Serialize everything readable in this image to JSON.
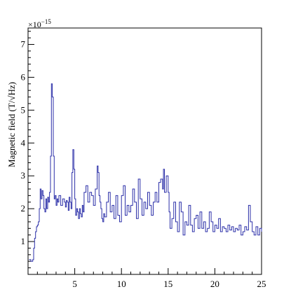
{
  "chart_data": {
    "type": "line",
    "title": "",
    "xlabel": "",
    "ylabel": "Magnetic field (T/√Hz)",
    "y_multiplier_base": "×10",
    "y_multiplier_exponent": "−15",
    "xlim": [
      0,
      25
    ],
    "ylim": [
      0,
      7.5
    ],
    "x_ticks": [
      5,
      10,
      15,
      20,
      25
    ],
    "x_tick_labels": [
      "5",
      "10",
      "15",
      "20",
      "25"
    ],
    "y_ticks": [
      1,
      2,
      3,
      4,
      5,
      6,
      7
    ],
    "y_tick_labels": [
      "1",
      "2",
      "3",
      "4",
      "5",
      "6",
      "7"
    ],
    "grid": false,
    "legend": "none",
    "series_color": "#2b2fa8",
    "series": [
      {
        "x": [
          0.1,
          0.3,
          0.5,
          0.6,
          0.7,
          0.8,
          0.9,
          1.0,
          1.1,
          1.2,
          1.3,
          1.4,
          1.5,
          1.6,
          1.7,
          1.8,
          1.9,
          2.0,
          2.1,
          2.2,
          2.3,
          2.4,
          2.5,
          2.6,
          2.7,
          2.8,
          2.9,
          3.0,
          3.1,
          3.2,
          3.3,
          3.5,
          3.7,
          3.9,
          4.0,
          4.1,
          4.2,
          4.3,
          4.4,
          4.5,
          4.6,
          4.7,
          4.8,
          4.9,
          5.0,
          5.1,
          5.2,
          5.3,
          5.4,
          5.5,
          5.6,
          5.7,
          5.8,
          5.9,
          6.0,
          6.2,
          6.4,
          6.6,
          6.8,
          7.0,
          7.2,
          7.4,
          7.5,
          7.6,
          7.7,
          7.8,
          7.9,
          8.0,
          8.1,
          8.2,
          8.4,
          8.6,
          8.8,
          9.0,
          9.2,
          9.4,
          9.6,
          9.8,
          10.0,
          10.2,
          10.4,
          10.6,
          10.8,
          11.0,
          11.2,
          11.4,
          11.6,
          11.8,
          12.0,
          12.2,
          12.4,
          12.6,
          12.8,
          13.0,
          13.2,
          13.4,
          13.6,
          13.8,
          14.0,
          14.2,
          14.4,
          14.5,
          14.6,
          14.8,
          15.0,
          15.1,
          15.2,
          15.4,
          15.6,
          15.8,
          16.0,
          16.2,
          16.4,
          16.6,
          16.8,
          17.0,
          17.2,
          17.4,
          17.6,
          17.8,
          18.0,
          18.2,
          18.4,
          18.6,
          18.8,
          19.0,
          19.2,
          19.4,
          19.6,
          19.8,
          20.0,
          20.2,
          20.4,
          20.6,
          20.8,
          21.0,
          21.2,
          21.4,
          21.6,
          21.8,
          22.0,
          22.2,
          22.4,
          22.6,
          22.8,
          23.0,
          23.2,
          23.4,
          23.6,
          23.8,
          24.0,
          24.2,
          24.4,
          24.6,
          24.8,
          25.0
        ],
        "y": [
          0.45,
          0.4,
          0.45,
          0.8,
          1.1,
          1.3,
          1.45,
          1.5,
          1.6,
          2.0,
          2.6,
          2.3,
          2.55,
          2.4,
          2.0,
          1.9,
          2.3,
          2.0,
          2.35,
          2.2,
          2.5,
          3.6,
          5.8,
          5.4,
          3.6,
          2.3,
          2.4,
          2.1,
          2.3,
          2.2,
          2.4,
          2.1,
          2.3,
          2.2,
          2.05,
          2.25,
          2.2,
          1.95,
          2.35,
          2.2,
          2.0,
          3.1,
          3.8,
          3.2,
          2.3,
          1.8,
          2.0,
          1.9,
          1.7,
          2.0,
          1.85,
          1.75,
          2.1,
          1.9,
          2.5,
          2.7,
          2.2,
          2.5,
          2.4,
          2.1,
          2.6,
          3.3,
          3.1,
          2.4,
          2.2,
          2.0,
          1.7,
          1.6,
          1.85,
          1.75,
          2.2,
          2.5,
          1.9,
          2.1,
          1.7,
          2.4,
          1.8,
          1.6,
          2.4,
          2.7,
          1.8,
          2.1,
          1.9,
          2.1,
          2.6,
          2.2,
          1.7,
          2.9,
          2.3,
          1.8,
          2.2,
          2.0,
          2.5,
          2.1,
          1.8,
          2.2,
          2.5,
          2.2,
          2.8,
          2.9,
          2.6,
          3.2,
          2.5,
          3.0,
          2.5,
          1.9,
          1.4,
          1.7,
          2.2,
          1.6,
          1.3,
          2.2,
          1.9,
          1.2,
          1.6,
          1.5,
          2.1,
          1.5,
          1.3,
          1.7,
          1.8,
          1.4,
          1.9,
          1.4,
          1.6,
          1.3,
          1.4,
          1.9,
          1.6,
          1.3,
          1.5,
          1.4,
          1.7,
          1.3,
          1.45,
          1.4,
          1.3,
          1.5,
          1.35,
          1.45,
          1.3,
          1.4,
          1.35,
          1.5,
          1.2,
          1.3,
          1.45,
          1.35,
          2.1,
          1.6,
          1.3,
          1.2,
          1.45,
          1.2,
          1.4,
          1.3
        ]
      }
    ]
  }
}
